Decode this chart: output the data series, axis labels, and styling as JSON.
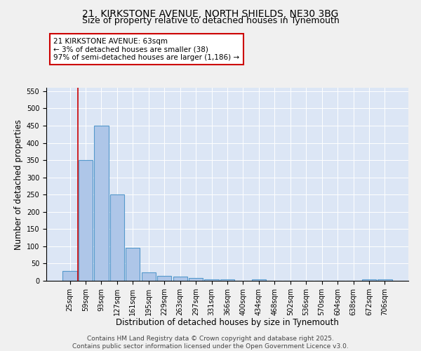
{
  "title_line1": "21, KIRKSTONE AVENUE, NORTH SHIELDS, NE30 3BG",
  "title_line2": "Size of property relative to detached houses in Tynemouth",
  "xlabel": "Distribution of detached houses by size in Tynemouth",
  "ylabel": "Number of detached properties",
  "categories": [
    "25sqm",
    "59sqm",
    "93sqm",
    "127sqm",
    "161sqm",
    "195sqm",
    "229sqm",
    "263sqm",
    "297sqm",
    "331sqm",
    "366sqm",
    "400sqm",
    "434sqm",
    "468sqm",
    "502sqm",
    "536sqm",
    "570sqm",
    "604sqm",
    "638sqm",
    "672sqm",
    "706sqm"
  ],
  "values": [
    28,
    350,
    450,
    250,
    95,
    25,
    15,
    12,
    8,
    5,
    4,
    0,
    4,
    0,
    0,
    0,
    0,
    0,
    0,
    4,
    4
  ],
  "bar_color": "#aec6e8",
  "bar_edge_color": "#5599cc",
  "vline_x_idx": 0.5,
  "vline_color": "#cc0000",
  "annotation_text": "21 KIRKSTONE AVENUE: 63sqm\n← 3% of detached houses are smaller (38)\n97% of semi-detached houses are larger (1,186) →",
  "annotation_box_color": "#ffffff",
  "annotation_box_edge": "#cc0000",
  "ylim": [
    0,
    560
  ],
  "yticks": [
    0,
    50,
    100,
    150,
    200,
    250,
    300,
    350,
    400,
    450,
    500,
    550
  ],
  "footer_line1": "Contains HM Land Registry data © Crown copyright and database right 2025.",
  "footer_line2": "Contains public sector information licensed under the Open Government Licence v3.0.",
  "bg_color": "#dce6f5",
  "fig_color": "#f0f0f0",
  "title_fontsize": 10,
  "subtitle_fontsize": 9,
  "axis_label_fontsize": 8.5,
  "tick_fontsize": 7,
  "annotation_fontsize": 7.5,
  "footer_fontsize": 6.5
}
